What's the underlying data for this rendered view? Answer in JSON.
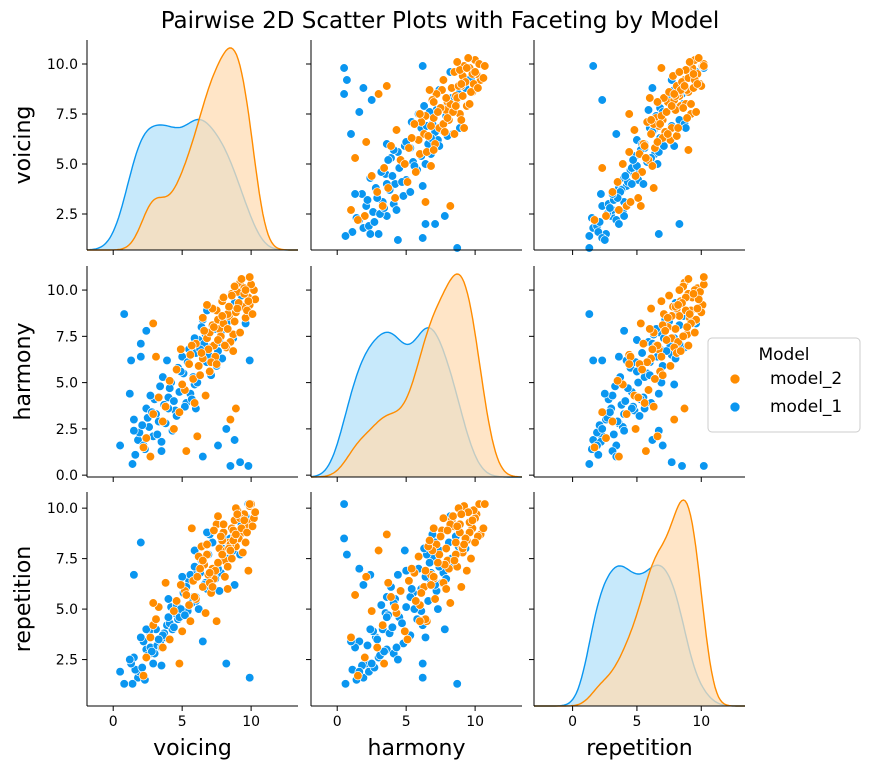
{
  "chart_data": {
    "type": "scatter",
    "title": "Pairwise 2D Scatter Plots with Faceting by Model",
    "variables": [
      "voicing",
      "harmony",
      "repetition"
    ],
    "axis_ranges": {
      "voicing": [
        -1.9,
        13.4
      ],
      "harmony": [
        -1.9,
        13.4
      ],
      "repetition": [
        -3.0,
        13.4
      ]
    },
    "y_axis_ranges": {
      "voicing": [
        0.7,
        11.2
      ],
      "harmony": [
        -0.1,
        11.3
      ],
      "repetition": [
        0.2,
        10.8
      ]
    },
    "x_ticks": [
      0,
      5,
      10
    ],
    "y_ticks": {
      "voicing": [
        2.5,
        5.0,
        7.5,
        10.0
      ],
      "harmony": [
        0.0,
        2.5,
        5.0,
        7.5,
        10.0
      ],
      "repetition": [
        2.5,
        5.0,
        7.5,
        10.0
      ]
    },
    "y_tick_labels": {
      "voicing": [
        "2.5",
        "5.0",
        "7.5",
        "10.0"
      ],
      "harmony": [
        "0.0",
        "2.5",
        "5.0",
        "7.5",
        "10.0"
      ],
      "repetition": [
        "2.5",
        "5.0",
        "7.5",
        "10.0"
      ]
    },
    "x_tick_labels": [
      "0",
      "5",
      "10"
    ],
    "legend": {
      "title": "Model",
      "placement": "right",
      "entries": [
        "model_2",
        "model_1"
      ]
    },
    "grid": false,
    "colors": {
      "model_2": "#ff8c00",
      "model_1": "#0a96f0"
    },
    "kde_fill_colors": {
      "model_2": "#ffdcb4",
      "model_1": "#b4e1fa"
    },
    "series": [
      {
        "name": "model_2",
        "points": [
          [
            8.6,
            9.8,
            9.0
          ],
          [
            9.2,
            10.4,
            8.7
          ],
          [
            7.5,
            8.9,
            9.2
          ],
          [
            8.9,
            9.0,
            8.1
          ],
          [
            9.8,
            9.6,
            9.3
          ],
          [
            8.1,
            8.0,
            7.4
          ],
          [
            7.3,
            7.0,
            6.5
          ],
          [
            9.5,
            10.1,
            9.7
          ],
          [
            8.4,
            8.6,
            8.3
          ],
          [
            6.8,
            7.4,
            7.7
          ],
          [
            9.9,
            9.2,
            10.1
          ],
          [
            8.7,
            7.6,
            8.9
          ],
          [
            7.9,
            9.4,
            8.4
          ],
          [
            10.2,
            10.0,
            9.5
          ],
          [
            6.5,
            6.3,
            6.1
          ],
          [
            8.3,
            8.7,
            7.1
          ],
          [
            9.0,
            9.9,
            9.9
          ],
          [
            7.7,
            7.9,
            8.0
          ],
          [
            8.8,
            8.3,
            9.4
          ],
          [
            9.4,
            9.1,
            7.8
          ],
          [
            7.2,
            8.1,
            7.0
          ],
          [
            8.0,
            9.6,
            8.8
          ],
          [
            9.6,
            8.5,
            9.1
          ],
          [
            6.9,
            6.8,
            6.7
          ],
          [
            8.5,
            7.2,
            8.2
          ],
          [
            10.0,
            10.3,
            10.2
          ],
          [
            7.6,
            8.4,
            9.6
          ],
          [
            9.1,
            9.3,
            8.5
          ],
          [
            8.2,
            6.9,
            7.9
          ],
          [
            7.0,
            7.7,
            6.3
          ],
          [
            9.3,
            10.6,
            9.0
          ],
          [
            8.9,
            8.8,
            10.0
          ],
          [
            6.2,
            5.9,
            7.6
          ],
          [
            7.8,
            7.5,
            8.6
          ],
          [
            8.6,
            9.7,
            7.5
          ],
          [
            9.7,
            8.9,
            8.8
          ],
          [
            7.4,
            6.4,
            6.9
          ],
          [
            10.3,
            9.5,
            9.8
          ],
          [
            8.0,
            8.2,
            9.2
          ],
          [
            6.6,
            7.8,
            7.2
          ],
          [
            8.8,
            10.2,
            8.6
          ],
          [
            7.1,
            6.1,
            5.8
          ],
          [
            9.2,
            7.7,
            9.5
          ],
          [
            8.4,
            9.1,
            8.0
          ],
          [
            7.6,
            7.3,
            7.3
          ],
          [
            9.9,
            10.7,
            10.2
          ],
          [
            8.1,
            7.0,
            6.6
          ],
          [
            6.4,
            6.6,
            8.1
          ],
          [
            9.5,
            9.8,
            9.4
          ],
          [
            7.9,
            8.6,
            7.7
          ],
          [
            5.8,
            5.2,
            6.4
          ],
          [
            8.3,
            7.9,
            6.0
          ],
          [
            9.0,
            9.0,
            9.7
          ],
          [
            6.0,
            7.1,
            5.5
          ],
          [
            7.3,
            8.0,
            8.9
          ],
          [
            10.1,
            8.7,
            9.1
          ],
          [
            8.7,
            6.7,
            8.4
          ],
          [
            5.5,
            6.0,
            5.2
          ],
          [
            9.6,
            10.0,
            8.3
          ],
          [
            7.0,
            5.6,
            6.8
          ],
          [
            5.2,
            4.6,
            5.9
          ],
          [
            6.3,
            5.4,
            7.0
          ],
          [
            4.9,
            6.8,
            6.2
          ],
          [
            5.9,
            3.9,
            5.6
          ],
          [
            6.7,
            4.3,
            4.8
          ],
          [
            4.6,
            5.7,
            5.4
          ],
          [
            5.6,
            6.5,
            4.4
          ],
          [
            3.8,
            3.7,
            6.3
          ],
          [
            4.4,
            2.5,
            4.9
          ],
          [
            5.0,
            4.9,
            3.9
          ],
          [
            3.3,
            4.2,
            5.1
          ],
          [
            6.1,
            2.1,
            6.6
          ],
          [
            4.1,
            5.1,
            3.5
          ],
          [
            2.9,
            3.3,
            4.2
          ],
          [
            5.3,
            1.3,
            5.7
          ],
          [
            3.6,
            2.9,
            3.1
          ],
          [
            2.4,
            2.0,
            2.6
          ],
          [
            4.8,
            3.4,
            2.3
          ],
          [
            2.7,
            1.0,
            3.6
          ],
          [
            3.1,
            6.4,
            4.5
          ],
          [
            2.2,
            1.5,
            1.7
          ],
          [
            6.5,
            8.5,
            7.4
          ],
          [
            7.2,
            9.0,
            6.1
          ],
          [
            8.5,
            3.0,
            7.9
          ],
          [
            5.7,
            7.0,
            9.0
          ],
          [
            8.9,
            3.6,
            8.7
          ],
          [
            2.9,
            8.2,
            5.3
          ],
          [
            7.5,
            6.0,
            4.4
          ],
          [
            6.8,
            9.2,
            8.2
          ],
          [
            9.8,
            9.4,
            6.9
          ]
        ]
      },
      {
        "name": "model_1",
        "points": [
          [
            6.5,
            8.4,
            7.2
          ],
          [
            4.2,
            5.0,
            5.1
          ],
          [
            5.5,
            6.8,
            6.4
          ],
          [
            3.1,
            3.3,
            4.0
          ],
          [
            7.8,
            7.7,
            6.8
          ],
          [
            2.4,
            3.6,
            3.0
          ],
          [
            5.9,
            4.9,
            7.9
          ],
          [
            4.7,
            5.8,
            4.5
          ],
          [
            6.8,
            6.1,
            6.0
          ],
          [
            3.8,
            2.8,
            3.6
          ],
          [
            5.1,
            5.5,
            5.8
          ],
          [
            2.9,
            2.1,
            2.3
          ],
          [
            7.2,
            8.1,
            8.3
          ],
          [
            4.0,
            4.2,
            5.5
          ],
          [
            6.2,
            7.3,
            5.0
          ],
          [
            1.8,
            1.9,
            1.6
          ],
          [
            5.6,
            4.4,
            6.7
          ],
          [
            3.4,
            4.8,
            3.3
          ],
          [
            8.1,
            7.0,
            7.6
          ],
          [
            4.5,
            3.5,
            4.8
          ],
          [
            6.0,
            6.6,
            5.4
          ],
          [
            2.6,
            2.6,
            3.9
          ],
          [
            7.5,
            5.9,
            7.0
          ],
          [
            3.9,
            6.2,
            4.2
          ],
          [
            5.3,
            3.9,
            6.1
          ],
          [
            1.5,
            3.0,
            2.6
          ],
          [
            6.7,
            7.6,
            6.3
          ],
          [
            4.3,
            2.4,
            4.0
          ],
          [
            8.5,
            8.8,
            8.1
          ],
          [
            3.0,
            4.1,
            2.8
          ],
          [
            5.8,
            5.3,
            5.6
          ],
          [
            2.2,
            1.6,
            3.4
          ],
          [
            7.0,
            6.9,
            8.7
          ],
          [
            4.8,
            4.5,
            4.6
          ],
          [
            6.4,
            8.0,
            7.4
          ],
          [
            3.5,
            1.8,
            2.2
          ],
          [
            5.0,
            6.4,
            6.6
          ],
          [
            1.9,
            2.3,
            1.9
          ],
          [
            7.7,
            7.2,
            5.9
          ],
          [
            4.6,
            3.2,
            5.2
          ],
          [
            6.1,
            5.0,
            6.9
          ],
          [
            2.7,
            4.3,
            3.1
          ],
          [
            8.0,
            8.6,
            8.6
          ],
          [
            3.7,
            3.8,
            3.8
          ],
          [
            5.4,
            6.1,
            4.9
          ],
          [
            1.6,
            1.1,
            2.0
          ],
          [
            6.9,
            6.5,
            7.7
          ],
          [
            4.1,
            4.7,
            4.3
          ],
          [
            7.4,
            7.9,
            6.5
          ],
          [
            2.5,
            3.1,
            2.7
          ],
          [
            5.7,
            4.1,
            5.3
          ],
          [
            3.2,
            2.2,
            3.2
          ],
          [
            6.6,
            7.1,
            6.2
          ],
          [
            4.9,
            5.6,
            5.0
          ],
          [
            8.3,
            8.3,
            7.5
          ],
          [
            2.1,
            2.7,
            2.1
          ],
          [
            5.2,
            3.7,
            4.7
          ],
          [
            7.9,
            6.3,
            8.0
          ],
          [
            3.6,
            5.3,
            3.7
          ],
          [
            6.3,
            6.8,
            6.8
          ],
          [
            1.4,
            0.6,
            1.3
          ],
          [
            4.4,
            4.0,
            4.1
          ],
          [
            7.1,
            5.4,
            6.0
          ],
          [
            2.8,
            3.4,
            2.9
          ],
          [
            5.9,
            7.4,
            7.1
          ],
          [
            3.3,
            2.9,
            3.5
          ],
          [
            6.8,
            8.9,
            8.8
          ],
          [
            4.0,
            3.6,
            4.6
          ],
          [
            7.6,
            6.7,
            7.3
          ],
          [
            2.3,
            1.4,
            1.5
          ],
          [
            9.3,
            9.7,
            9.2
          ],
          [
            8.8,
            9.3,
            8.0
          ],
          [
            9.6,
            8.2,
            9.6
          ],
          [
            8.7,
            7.4,
            7.9
          ],
          [
            1.3,
            6.2,
            2.3
          ],
          [
            0.8,
            8.7,
            1.3
          ],
          [
            2.0,
            6.4,
            3.6
          ],
          [
            1.2,
            4.4,
            2.5
          ],
          [
            0.5,
            1.6,
            1.9
          ],
          [
            6.0,
            3.6,
            5.6
          ],
          [
            9.2,
            0.7,
            7.7
          ],
          [
            8.5,
            0.5,
            8.5
          ],
          [
            9.8,
            0.5,
            10.2
          ],
          [
            2.4,
            7.8,
            4.0
          ],
          [
            8.2,
            2.5,
            2.3
          ],
          [
            3.5,
            1.3,
            3.1
          ],
          [
            9.9,
            6.2,
            1.6
          ],
          [
            7.6,
            1.6,
            7.0
          ],
          [
            8.8,
            1.9,
            6.2
          ],
          [
            2.0,
            7.1,
            8.3
          ],
          [
            1.5,
            2.4,
            6.7
          ],
          [
            6.5,
            1.0,
            3.4
          ]
        ]
      }
    ]
  }
}
